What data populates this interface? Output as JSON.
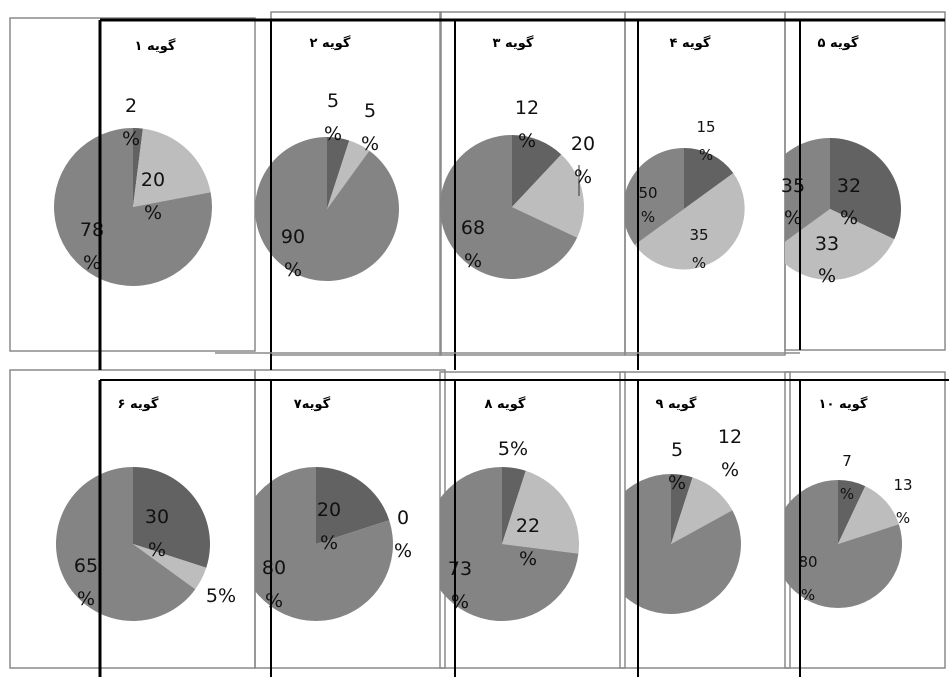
{
  "colors": {
    "dark": "#626262",
    "light": "#bdbdbd",
    "mid": "#848484",
    "frame": "#8a8a8a",
    "line": "#000000"
  },
  "chart_data": [
    {
      "type": "pie",
      "title": "گویه ۱",
      "values": [
        2,
        20,
        78
      ],
      "labels": [
        "2 %",
        "20 %",
        "78 %"
      ]
    },
    {
      "type": "pie",
      "title": "گویه ۲",
      "values": [
        5,
        5,
        90
      ],
      "labels": [
        "5 %",
        "5 %",
        "90 %"
      ]
    },
    {
      "type": "pie",
      "title": "گویه ۳",
      "values": [
        12,
        20,
        68
      ],
      "labels": [
        "12 %",
        "20 %",
        "68 %"
      ]
    },
    {
      "type": "pie",
      "title": "گویه ۴",
      "values": [
        15,
        50,
        35
      ],
      "labels": [
        "15 %",
        "50 %",
        "35 %"
      ]
    },
    {
      "type": "pie",
      "title": "گویه ۵",
      "values": [
        32,
        33,
        35
      ],
      "labels": [
        "32 %",
        "33 %",
        "35 %"
      ]
    },
    {
      "type": "pie",
      "title": "گویه ۶",
      "values": [
        30,
        5,
        65
      ],
      "labels": [
        "30 %",
        "5%",
        "65 %"
      ]
    },
    {
      "type": "pie",
      "title": "گویه۷",
      "values": [
        20,
        0,
        80
      ],
      "labels": [
        "20 %",
        "0 %",
        "80 %"
      ]
    },
    {
      "type": "pie",
      "title": "گویه ۸",
      "values": [
        5,
        22,
        73
      ],
      "labels": [
        "5%",
        "22 %",
        "73 %"
      ]
    },
    {
      "type": "pie",
      "title": "گویه ۹",
      "values": [
        5,
        12,
        83
      ],
      "labels": [
        "5 %",
        "12 %",
        ""
      ]
    },
    {
      "type": "pie",
      "title": "گویه ۱۰",
      "values": [
        7,
        13,
        80
      ],
      "labels": [
        "7 %",
        "13 %",
        "80 %"
      ]
    }
  ]
}
